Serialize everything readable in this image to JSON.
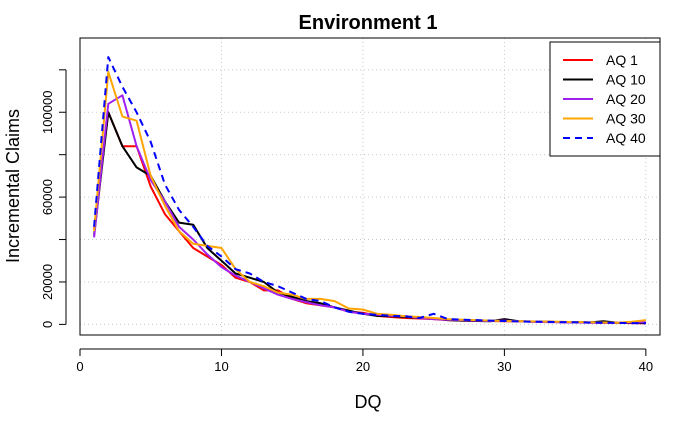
{
  "chart_data": {
    "type": "line",
    "title": "Environment 1",
    "xlabel": "DQ",
    "ylabel": "Incremental Claims",
    "xlim": [
      0,
      41
    ],
    "ylim": [
      -5000,
      135000
    ],
    "xticks": [
      0,
      10,
      20,
      30,
      40
    ],
    "xtick_labels": [
      "0",
      "10",
      "20",
      "30",
      "40"
    ],
    "yticks": [
      0,
      20000,
      60000,
      100000
    ],
    "ytick_labels": [
      "0",
      "20000",
      "60000",
      "100000"
    ],
    "grid": true,
    "legend_position": "top-right",
    "x": [
      1,
      2,
      3,
      4,
      5,
      6,
      7,
      8,
      9,
      10,
      11,
      12,
      13,
      14,
      15,
      16,
      17,
      18,
      19,
      20,
      21,
      22,
      23,
      24,
      25,
      26,
      27,
      28,
      29,
      30,
      31,
      32,
      33,
      34,
      35,
      36,
      37,
      38,
      39,
      40
    ],
    "series": [
      {
        "name": "AQ 1",
        "color": "#ff0000",
        "dash": "solid",
        "values": [
          45000,
          100000,
          84000,
          84000,
          65000,
          52000,
          44000,
          36000,
          32000,
          28000,
          22000,
          20000,
          16000,
          16000,
          12000,
          10000,
          9000,
          8000,
          6000,
          5500,
          4000,
          3500,
          3000,
          2800,
          2500,
          2000,
          1800,
          1700,
          1600,
          1500,
          1400,
          1300,
          1200,
          1100,
          1000,
          900,
          800,
          700,
          600,
          500
        ]
      },
      {
        "name": "AQ 10",
        "color": "#000000",
        "dash": "solid",
        "values": [
          42000,
          100000,
          84000,
          74000,
          70000,
          58000,
          48000,
          47000,
          36000,
          30000,
          24000,
          22000,
          20000,
          15000,
          13000,
          11000,
          10000,
          8000,
          6500,
          5000,
          4000,
          3800,
          3500,
          3000,
          2800,
          2000,
          1800,
          1600,
          1500,
          2500,
          1500,
          1300,
          1200,
          1100,
          1000,
          900,
          1500,
          800,
          700,
          600
        ]
      },
      {
        "name": "AQ 20",
        "color": "#a020f0",
        "dash": "solid",
        "values": [
          41000,
          104000,
          108000,
          84000,
          68000,
          58000,
          46000,
          40000,
          33000,
          27000,
          23000,
          20000,
          17000,
          14000,
          12000,
          10500,
          9000,
          8000,
          6000,
          5000,
          4500,
          4000,
          3800,
          3000,
          2500,
          2200,
          2000,
          1800,
          1600,
          1800,
          1400,
          1200,
          1100,
          1000,
          900,
          800,
          700,
          800,
          900,
          1000
        ]
      },
      {
        "name": "AQ 30",
        "color": "#ffa500",
        "dash": "solid",
        "values": [
          44000,
          119000,
          98000,
          96000,
          70000,
          56000,
          44000,
          38000,
          37000,
          36000,
          26000,
          20000,
          18000,
          15000,
          14000,
          12000,
          12000,
          11000,
          7500,
          7000,
          5000,
          4500,
          3800,
          3500,
          3000,
          2500,
          2200,
          2000,
          1800,
          1600,
          1500,
          1400,
          1300,
          1200,
          1100,
          1000,
          900,
          800,
          1200,
          2000
        ]
      },
      {
        "name": "AQ 40",
        "color": "#0000ff",
        "dash": "dashed",
        "values": [
          46000,
          126000,
          112000,
          100000,
          86000,
          66000,
          54000,
          46000,
          37000,
          32000,
          26000,
          24000,
          20000,
          18000,
          15000,
          12000,
          11000,
          8000,
          6000,
          5000,
          4500,
          4000,
          3800,
          3000,
          5000,
          2500,
          2200,
          2000,
          1800,
          1600,
          1400,
          1300,
          1200,
          1100,
          1000,
          900,
          800,
          700,
          600,
          500
        ]
      }
    ]
  }
}
